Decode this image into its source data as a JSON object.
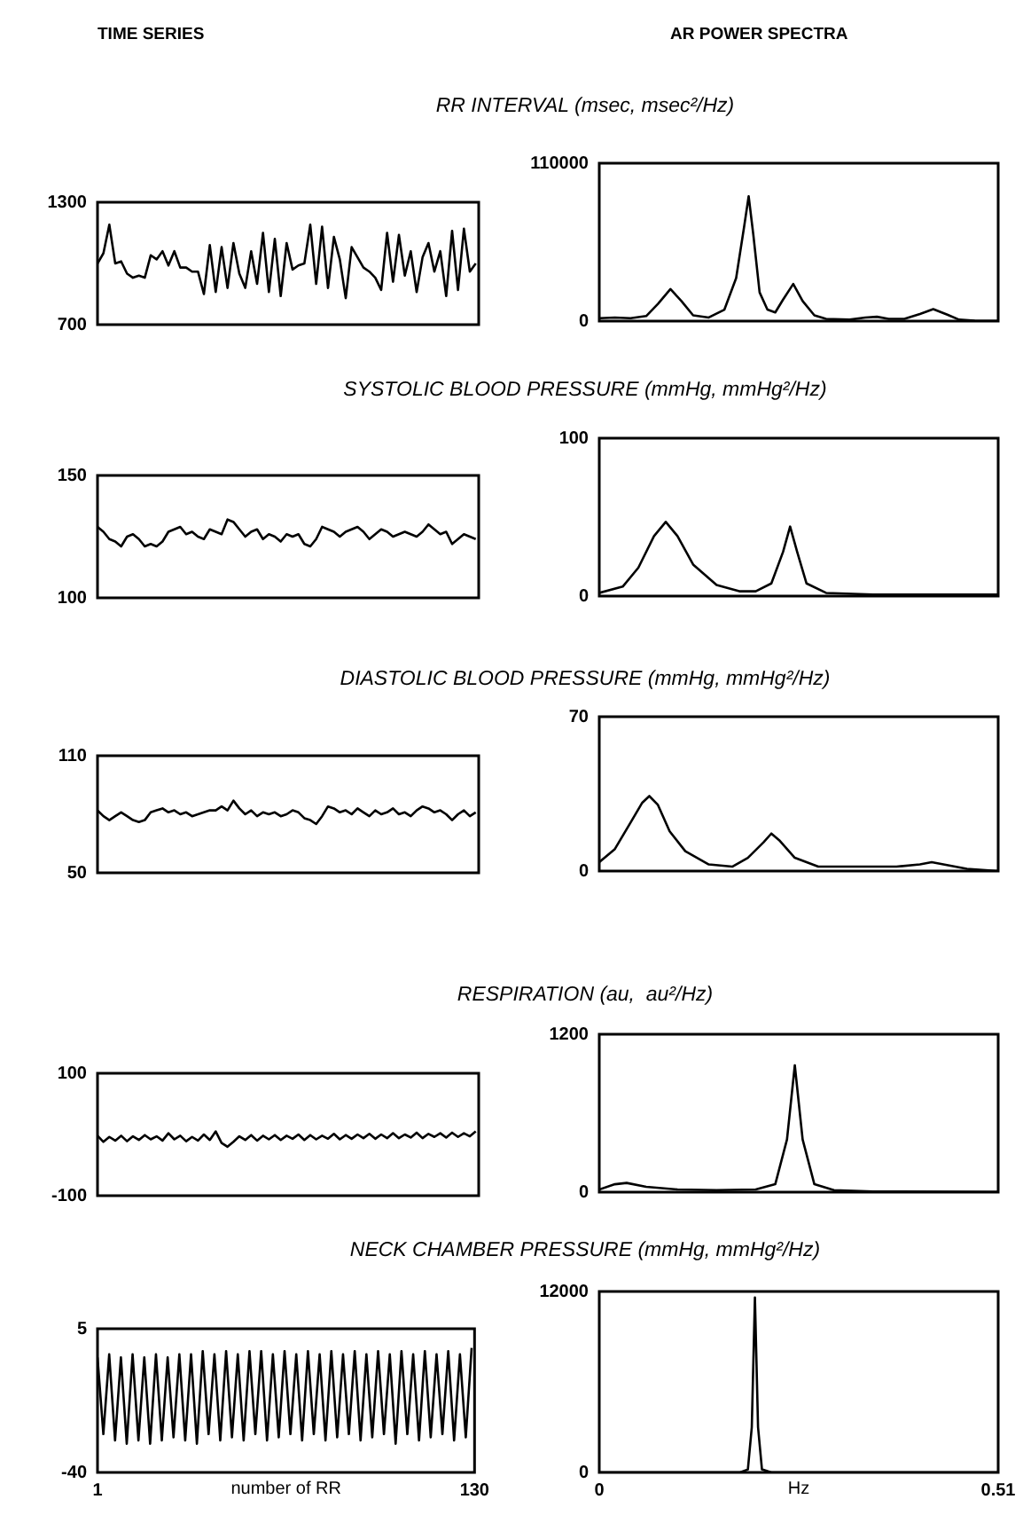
{
  "chart_data": [
    {
      "type": "line",
      "title": "RR INTERVAL (msec, msec²/Hz)",
      "annotations": [
        "TIME SERIES"
      ],
      "marker": "none",
      "tick_labels": "y",
      "xlim": [
        1,
        130
      ],
      "ylim": [
        700,
        1300
      ],
      "yticks": [
        700,
        1300
      ],
      "x": [
        1,
        3,
        5,
        7,
        9,
        11,
        13,
        15,
        17,
        19,
        21,
        23,
        25,
        27,
        29,
        31,
        33,
        35,
        37,
        39,
        41,
        43,
        45,
        47,
        49,
        51,
        53,
        55,
        57,
        59,
        61,
        63,
        65,
        67,
        69,
        71,
        73,
        75,
        77,
        79,
        81,
        83,
        85,
        87,
        89,
        91,
        93,
        95,
        97,
        99,
        101,
        103,
        105,
        107,
        109,
        111,
        113,
        115,
        117,
        119,
        121,
        123,
        125,
        127,
        129
      ],
      "series": [
        {
          "color": "#000000",
          "values": [
            1000,
            1050,
            1190,
            1000,
            1010,
            950,
            930,
            940,
            930,
            1040,
            1020,
            1060,
            990,
            1060,
            980,
            980,
            960,
            960,
            850,
            1090,
            860,
            1080,
            880,
            1100,
            950,
            880,
            1060,
            900,
            1150,
            860,
            1120,
            840,
            1100,
            970,
            990,
            1000,
            1190,
            900,
            1180,
            880,
            1130,
            1020,
            830,
            1080,
            1030,
            980,
            960,
            930,
            870,
            1150,
            910,
            1140,
            940,
            1060,
            860,
            1030,
            1100,
            960,
            1060,
            840,
            1160,
            870,
            1170,
            960,
            1000
          ]
        }
      ]
    },
    {
      "type": "line",
      "annotations": [
        "AR POWER SPECTRA"
      ],
      "marker": "none",
      "tick_labels": "y",
      "xlim": [
        0,
        0.51
      ],
      "ylim": [
        0,
        110000
      ],
      "yticks": [
        0,
        110000
      ],
      "series": [
        {
          "color": "#000000",
          "x": [
            0,
            0.02,
            0.04,
            0.06,
            0.075,
            0.091,
            0.105,
            0.12,
            0.14,
            0.16,
            0.175,
            0.185,
            0.191,
            0.197,
            0.205,
            0.215,
            0.225,
            0.235,
            0.248,
            0.26,
            0.275,
            0.29,
            0.32,
            0.34,
            0.355,
            0.37,
            0.39,
            0.41,
            0.427,
            0.445,
            0.46,
            0.48,
            0.51
          ],
          "values": [
            2000,
            2500,
            2000,
            3500,
            12000,
            22300,
            14000,
            4000,
            2500,
            8000,
            30000,
            65000,
            87000,
            60000,
            20000,
            8000,
            6000,
            15000,
            25900,
            14000,
            4000,
            1500,
            1000,
            2500,
            3000,
            1500,
            1500,
            5000,
            8300,
            4500,
            1000,
            300,
            200
          ]
        }
      ]
    },
    {
      "type": "line",
      "title": "SYSTOLIC BLOOD PRESSURE (mmHg, mmHg²/Hz)",
      "marker": "none",
      "tick_labels": "y",
      "xlim": [
        1,
        130
      ],
      "ylim": [
        100,
        150
      ],
      "yticks": [
        100,
        150
      ],
      "x": [
        1,
        3,
        5,
        7,
        9,
        11,
        13,
        15,
        17,
        19,
        21,
        23,
        25,
        27,
        29,
        31,
        33,
        35,
        37,
        39,
        41,
        43,
        45,
        47,
        49,
        51,
        53,
        55,
        57,
        59,
        61,
        63,
        65,
        67,
        69,
        71,
        73,
        75,
        77,
        79,
        81,
        83,
        85,
        87,
        89,
        91,
        93,
        95,
        97,
        99,
        101,
        103,
        105,
        107,
        109,
        111,
        113,
        115,
        117,
        119,
        121,
        123,
        125,
        127,
        129
      ],
      "series": [
        {
          "color": "#000000",
          "values": [
            129,
            127,
            124,
            123,
            121,
            125,
            126,
            124,
            121,
            122,
            121,
            123,
            127,
            128,
            129,
            126,
            127,
            125,
            124,
            128,
            127,
            126,
            132,
            131,
            128,
            125,
            127,
            128,
            124,
            126,
            125,
            123,
            126,
            125,
            126,
            122,
            121,
            124,
            129,
            128,
            127,
            125,
            127,
            128,
            129,
            127,
            124,
            126,
            128,
            127,
            125,
            126,
            127,
            126,
            125,
            127,
            130,
            128,
            126,
            127,
            122,
            124,
            126,
            125,
            124
          ]
        }
      ]
    },
    {
      "type": "line",
      "marker": "none",
      "tick_labels": "y",
      "xlim": [
        0,
        0.51
      ],
      "ylim": [
        0,
        100
      ],
      "yticks": [
        0,
        100
      ],
      "series": [
        {
          "color": "#000000",
          "x": [
            0,
            0.03,
            0.05,
            0.07,
            0.085,
            0.1,
            0.12,
            0.15,
            0.18,
            0.2,
            0.22,
            0.235,
            0.244,
            0.253,
            0.265,
            0.29,
            0.35,
            0.45,
            0.51
          ],
          "values": [
            2,
            6,
            18,
            38,
            47,
            38,
            20,
            7,
            3,
            3,
            8,
            28,
            44,
            28,
            8,
            2,
            1,
            1,
            1
          ]
        }
      ]
    },
    {
      "type": "line",
      "title": "DIASTOLIC BLOOD PRESSURE (mmHg, mmHg²/Hz)",
      "marker": "none",
      "tick_labels": "y",
      "xlim": [
        1,
        130
      ],
      "ylim": [
        50,
        110
      ],
      "yticks": [
        50,
        110
      ],
      "x": [
        1,
        3,
        5,
        7,
        9,
        11,
        13,
        15,
        17,
        19,
        21,
        23,
        25,
        27,
        29,
        31,
        33,
        35,
        37,
        39,
        41,
        43,
        45,
        47,
        49,
        51,
        53,
        55,
        57,
        59,
        61,
        63,
        65,
        67,
        69,
        71,
        73,
        75,
        77,
        79,
        81,
        83,
        85,
        87,
        89,
        91,
        93,
        95,
        97,
        99,
        101,
        103,
        105,
        107,
        109,
        111,
        113,
        115,
        117,
        119,
        121,
        123,
        125,
        127,
        129
      ],
      "series": [
        {
          "color": "#000000",
          "values": [
            82,
            79,
            77,
            79,
            81,
            79,
            77,
            76,
            77,
            81,
            82,
            83,
            81,
            82,
            80,
            81,
            79,
            80,
            81,
            82,
            82,
            84,
            82,
            87,
            83,
            80,
            82,
            79,
            81,
            80,
            81,
            79,
            80,
            82,
            81,
            78,
            77,
            75,
            79,
            84,
            83,
            81,
            82,
            80,
            83,
            81,
            79,
            82,
            80,
            81,
            83,
            80,
            81,
            79,
            82,
            84,
            83,
            81,
            82,
            80,
            77,
            80,
            82,
            79,
            81
          ]
        }
      ]
    },
    {
      "type": "line",
      "marker": "none",
      "tick_labels": "y",
      "xlim": [
        0,
        0.51
      ],
      "ylim": [
        0,
        70
      ],
      "yticks": [
        0,
        70
      ],
      "series": [
        {
          "color": "#000000",
          "x": [
            0,
            0.02,
            0.04,
            0.055,
            0.064,
            0.075,
            0.09,
            0.11,
            0.14,
            0.17,
            0.19,
            0.21,
            0.22,
            0.23,
            0.25,
            0.28,
            0.32,
            0.38,
            0.41,
            0.425,
            0.44,
            0.47,
            0.51
          ],
          "values": [
            4,
            10,
            22,
            31,
            34,
            30,
            18,
            9,
            3,
            2,
            6,
            13,
            17,
            14,
            6,
            2,
            2,
            2,
            3,
            4,
            3,
            1,
            0
          ]
        }
      ]
    },
    {
      "type": "line",
      "title": "RESPIRATION (au,  au²/Hz)",
      "marker": "none",
      "tick_labels": "y",
      "xlim": [
        1,
        130
      ],
      "ylim": [
        -100,
        100
      ],
      "yticks": [
        -100,
        100
      ],
      "x": [
        1,
        3,
        5,
        7,
        9,
        11,
        13,
        15,
        17,
        19,
        21,
        23,
        25,
        27,
        29,
        31,
        33,
        35,
        37,
        39,
        41,
        43,
        45,
        47,
        49,
        51,
        53,
        55,
        57,
        59,
        61,
        63,
        65,
        67,
        69,
        71,
        73,
        75,
        77,
        79,
        81,
        83,
        85,
        87,
        89,
        91,
        93,
        95,
        97,
        99,
        101,
        103,
        105,
        107,
        109,
        111,
        113,
        115,
        117,
        119,
        121,
        123,
        125,
        127,
        129
      ],
      "series": [
        {
          "color": "#000000",
          "values": [
            -2,
            -12,
            -4,
            -10,
            -2,
            -11,
            -3,
            -9,
            -1,
            -8,
            -3,
            -10,
            2,
            -8,
            -2,
            -11,
            -4,
            -10,
            0,
            -9,
            5,
            -14,
            -20,
            -12,
            -3,
            -9,
            -1,
            -10,
            -2,
            -8,
            -1,
            -9,
            -2,
            -7,
            0,
            -9,
            -1,
            -8,
            -2,
            -7,
            1,
            -8,
            -1,
            -7,
            0,
            -6,
            1,
            -7,
            0,
            -6,
            2,
            -6,
            0,
            -5,
            3,
            -6,
            1,
            -4,
            2,
            -5,
            3,
            -4,
            2,
            -3,
            5
          ]
        }
      ]
    },
    {
      "type": "line",
      "marker": "none",
      "tick_labels": "y",
      "xlim": [
        0,
        0.51
      ],
      "ylim": [
        0,
        1200
      ],
      "yticks": [
        0,
        1200
      ],
      "series": [
        {
          "color": "#000000",
          "x": [
            0,
            0.02,
            0.035,
            0.06,
            0.1,
            0.15,
            0.2,
            0.225,
            0.24,
            0.25,
            0.26,
            0.275,
            0.3,
            0.35,
            0.45,
            0.51
          ],
          "values": [
            20,
            60,
            70,
            40,
            20,
            15,
            20,
            60,
            400,
            964,
            400,
            60,
            15,
            5,
            3,
            2
          ]
        }
      ]
    },
    {
      "type": "line",
      "title": "NECK CHAMBER PRESSURE (mmHg, mmHg²/Hz)",
      "xlabel": "number of RR",
      "marker": "none",
      "xlim": [
        1,
        130
      ],
      "xticks": [
        1,
        130
      ],
      "ylim": [
        -40,
        5
      ],
      "yticks": [
        -40,
        5
      ],
      "x": [
        1,
        3,
        5,
        7,
        9,
        11,
        13,
        15,
        17,
        19,
        21,
        23,
        25,
        27,
        29,
        31,
        33,
        35,
        37,
        39,
        41,
        43,
        45,
        47,
        49,
        51,
        53,
        55,
        57,
        59,
        61,
        63,
        65,
        67,
        69,
        71,
        73,
        75,
        77,
        79,
        81,
        83,
        85,
        87,
        89,
        91,
        93,
        95,
        97,
        99,
        101,
        103,
        105,
        107,
        109,
        111,
        113,
        115,
        117,
        119,
        121,
        123,
        125,
        127,
        129
      ],
      "series": [
        {
          "color": "#000000",
          "values": [
            -4,
            -28,
            -3,
            -30,
            -4,
            -31,
            -3,
            -30,
            -4,
            -31,
            -3,
            -30,
            -4,
            -29,
            -3,
            -30,
            -3,
            -31,
            -2,
            -28,
            -3,
            -30,
            -2,
            -29,
            -3,
            -30,
            -2,
            -28,
            -2,
            -30,
            -3,
            -29,
            -2,
            -28,
            -3,
            -30,
            -2,
            -28,
            -3,
            -30,
            -2,
            -29,
            -3,
            -28,
            -2,
            -30,
            -3,
            -29,
            -2,
            -28,
            -3,
            -31,
            -2,
            -28,
            -3,
            -30,
            -2,
            -29,
            -3,
            -28,
            -2,
            -30,
            -3,
            -29,
            -1
          ]
        }
      ]
    },
    {
      "type": "line",
      "xlabel": "Hz",
      "marker": "none",
      "xlim": [
        0,
        0.51
      ],
      "xticks": [
        0,
        0.51
      ],
      "ylim": [
        0,
        12000
      ],
      "yticks": [
        0,
        12000
      ],
      "series": [
        {
          "color": "#000000",
          "x": [
            0,
            0.1,
            0.18,
            0.19,
            0.195,
            0.199,
            0.203,
            0.208,
            0.22,
            0.3,
            0.51
          ],
          "values": [
            0,
            0,
            0,
            200,
            3000,
            11600,
            3000,
            200,
            0,
            0,
            0
          ]
        }
      ]
    }
  ]
}
